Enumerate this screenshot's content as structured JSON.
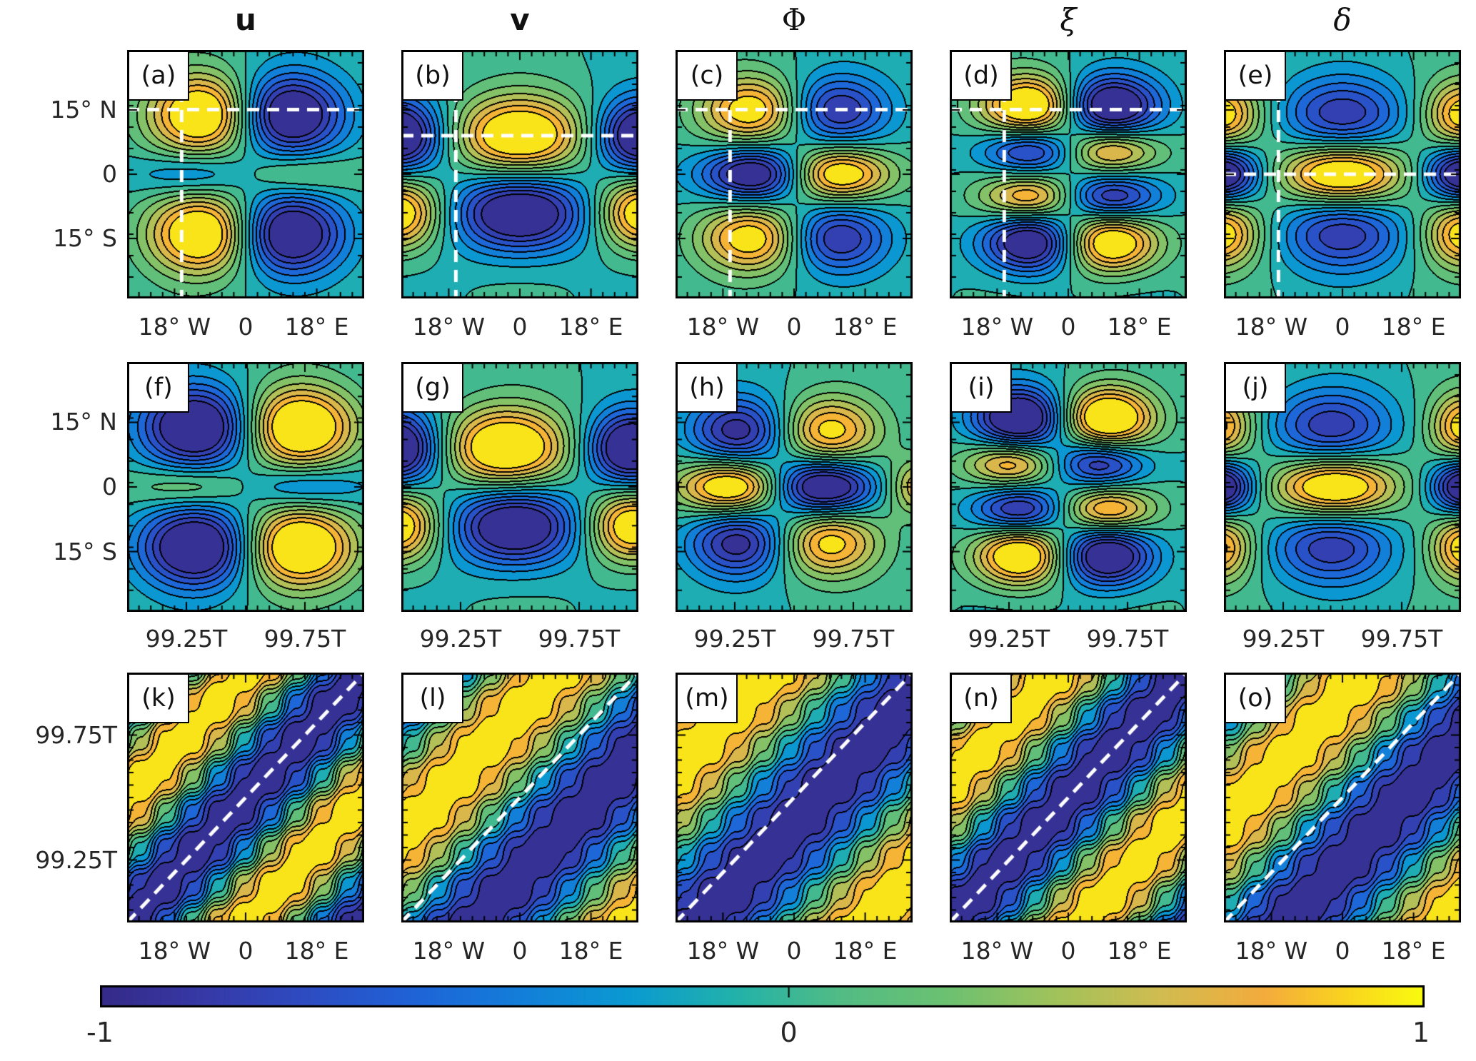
{
  "chart_data": {
    "type": "heatmap",
    "subtype": "filled-contour-panel-grid",
    "description": "3x5 grid of filled contour panels (a)-(o) of equatorial wave fields; columns are variables u, v, Phi, xi, delta; row 1 longitude-latitude maps, row 2 time-latitude sections, row 3 longitude-time Hovmoller diagrams; shared colorbar from -1 to 1",
    "value_range": [
      -1,
      1
    ],
    "contour_levels": 14,
    "colormap": {
      "name": "parula",
      "anchors": [
        [
          0.0,
          "#352a87"
        ],
        [
          0.08,
          "#3639a7"
        ],
        [
          0.16,
          "#2d4dc3"
        ],
        [
          0.24,
          "#1e64d8"
        ],
        [
          0.32,
          "#127fd9"
        ],
        [
          0.4,
          "#0a9ad1"
        ],
        [
          0.48,
          "#22b2aa"
        ],
        [
          0.56,
          "#52bc84"
        ],
        [
          0.64,
          "#6cc171"
        ],
        [
          0.72,
          "#a0c25b"
        ],
        [
          0.8,
          "#d0bc50"
        ],
        [
          0.88,
          "#f4ab3c"
        ],
        [
          0.94,
          "#f9d320"
        ],
        [
          1.0,
          "#f9fb0e"
        ]
      ]
    },
    "contour_line_color": "#000000",
    "dashed_line_color": "#ffffff",
    "column_titles": [
      {
        "text": "u",
        "style": "bold"
      },
      {
        "text": "v",
        "style": "bold"
      },
      {
        "text": "Φ",
        "style": "serif"
      },
      {
        "text": "ξ",
        "style": "serif-italic"
      },
      {
        "text": "δ",
        "style": "serif-italic"
      }
    ],
    "rows": [
      {
        "kind": "longitude-latitude",
        "x_axis": {
          "min": -30,
          "max": 30,
          "major_ticks": [
            -18,
            0,
            18
          ],
          "tick_labels": [
            "18° W",
            "0",
            "18° E"
          ],
          "minor_step": 3
        },
        "y_axis": {
          "min": -29,
          "max": 29,
          "major_ticks": [
            15,
            0,
            -15
          ],
          "tick_labels": [
            "15° N",
            "0",
            "15° S"
          ],
          "minor_step": 5
        }
      },
      {
        "kind": "time-latitude",
        "x_axis": {
          "min": 99,
          "max": 100,
          "major_ticks": [
            99.25,
            99.75
          ],
          "tick_labels": [
            "99.25T",
            "99.75T"
          ],
          "minor_step": 0.05
        },
        "y_axis": {
          "min": -29,
          "max": 29,
          "major_ticks": [
            15,
            0,
            -15
          ],
          "tick_labels": [
            "15° N",
            "0",
            "15° S"
          ],
          "minor_step": 5
        }
      },
      {
        "kind": "longitude-time",
        "x_axis": {
          "min": -30,
          "max": 30,
          "major_ticks": [
            -18,
            0,
            18
          ],
          "tick_labels": [
            "18° W",
            "0",
            "18° E"
          ],
          "minor_step": 3
        },
        "y_axis": {
          "min": 99,
          "max": 100,
          "major_ticks": [
            99.75,
            99.25
          ],
          "tick_labels": [
            "99.75T",
            "99.25T"
          ],
          "minor_step": 0.05
        }
      }
    ],
    "panels": [
      {
        "id": "a",
        "label": "(a)",
        "row": 0,
        "col": 0,
        "field": "u",
        "pattern": "blobs",
        "background": [
          "sin",
          -0.05
        ],
        "blobs": [
          [
            -10,
            14,
            10,
            6.5,
            1.3
          ],
          [
            10,
            14,
            10,
            6.5,
            -1.3
          ],
          [
            -10,
            -14,
            10,
            6.5,
            1.3
          ],
          [
            10,
            -14,
            10,
            6.5,
            -1.3
          ],
          [
            -10,
            0,
            12,
            3.5,
            -0.55
          ],
          [
            10,
            0,
            12,
            3.5,
            0.5
          ]
        ],
        "dashed": {
          "h_frac": 0.24,
          "v_frac": 0.23
        }
      },
      {
        "id": "b",
        "label": "(b)",
        "row": 0,
        "col": 1,
        "field": "v",
        "pattern": "blobs",
        "background": [
          "cos",
          0.05
        ],
        "blobs": [
          [
            -31,
            9,
            8,
            6,
            -1.3
          ],
          [
            0,
            9,
            12,
            6.5,
            1.2
          ],
          [
            31,
            9,
            8,
            6,
            -1.3
          ],
          [
            -31,
            -9,
            8,
            6,
            1.2
          ],
          [
            0,
            -9,
            12,
            6.5,
            -1.3
          ],
          [
            31,
            -9,
            8,
            6,
            1.2
          ]
        ],
        "dashed": {
          "h_frac": 0.345,
          "v_frac": 0.23
        }
      },
      {
        "id": "c",
        "label": "(c)",
        "row": 0,
        "col": 2,
        "field": "Φ",
        "pattern": "blobs",
        "background": [
          "sin",
          -0.05
        ],
        "blobs": [
          [
            -10,
            15,
            9.5,
            5.5,
            1.05
          ],
          [
            10,
            15,
            9.5,
            5.5,
            -0.9
          ],
          [
            -9,
            0,
            10,
            4.5,
            -1.35
          ],
          [
            10,
            0,
            10,
            4.5,
            1.3
          ],
          [
            -10,
            -15,
            9.5,
            5.5,
            1.05
          ],
          [
            10,
            -15,
            9.5,
            5.5,
            -0.9
          ]
        ],
        "dashed": {
          "h_frac": 0.24,
          "v_frac": 0.23
        }
      },
      {
        "id": "d",
        "label": "(d)",
        "row": 0,
        "col": 3,
        "field": "ξ",
        "pattern": "blobs",
        "background": [
          "sin",
          -0.05
        ],
        "blobs": [
          [
            -9,
            16,
            9,
            5,
            1.3
          ],
          [
            10,
            16,
            9,
            5,
            -1.3
          ],
          [
            -9,
            5.5,
            9,
            3.8,
            -0.95
          ],
          [
            10,
            5.5,
            9,
            3.8,
            0.95
          ],
          [
            -9,
            -5.5,
            9,
            3.8,
            0.95
          ],
          [
            10,
            -5.5,
            9,
            3.8,
            -0.95
          ],
          [
            -9,
            -16,
            9,
            5,
            -1.3
          ],
          [
            10,
            -16,
            9,
            5,
            1.3
          ]
        ],
        "dashed": {
          "h_frac": 0.24,
          "v_frac": 0.23
        }
      },
      {
        "id": "e",
        "label": "(e)",
        "row": 0,
        "col": 4,
        "field": "δ",
        "pattern": "blobs",
        "background": [
          "cos",
          -0.05
        ],
        "blobs": [
          [
            -31,
            14,
            7,
            5.5,
            1.0
          ],
          [
            0,
            14,
            11,
            6,
            -0.8
          ],
          [
            31,
            14,
            7,
            5.5,
            1.0
          ],
          [
            -31,
            0,
            7,
            4.5,
            -1.35
          ],
          [
            0,
            0,
            11,
            5,
            1.3
          ],
          [
            31,
            0,
            7,
            4.5,
            -1.35
          ],
          [
            -31,
            -14,
            7,
            5.5,
            1.0
          ],
          [
            0,
            -14,
            11,
            6,
            -0.8
          ],
          [
            31,
            -14,
            7,
            5.5,
            1.0
          ]
        ],
        "dashed": {
          "h_frac": 0.5,
          "v_frac": 0.23
        }
      },
      {
        "id": "f",
        "label": "(f)",
        "row": 1,
        "col": 0,
        "field": "u",
        "pattern": "blobs",
        "background": [
          "sin",
          0.05
        ],
        "blobs": [
          [
            99.3,
            14,
            0.17,
            6.5,
            -1.3
          ],
          [
            99.72,
            14,
            0.17,
            6.5,
            1.3
          ],
          [
            99.3,
            -14,
            0.17,
            6.5,
            -1.3
          ],
          [
            99.72,
            -14,
            0.17,
            6.5,
            1.3
          ],
          [
            99.3,
            0,
            0.2,
            3.5,
            0.5
          ],
          [
            99.72,
            0,
            0.2,
            3.5,
            -0.55
          ]
        ],
        "dashed": null
      },
      {
        "id": "g",
        "label": "(g)",
        "row": 1,
        "col": 1,
        "field": "v",
        "pattern": "blobs",
        "background": [
          "cos",
          0.05
        ],
        "blobs": [
          [
            98.98,
            9,
            0.13,
            6,
            -1.3
          ],
          [
            99.44,
            9,
            0.19,
            6.5,
            1.25
          ],
          [
            99.97,
            9,
            0.13,
            6,
            -1.3
          ],
          [
            98.98,
            -9,
            0.13,
            6,
            1.2
          ],
          [
            99.48,
            -9,
            0.19,
            6.5,
            -1.3
          ],
          [
            99.97,
            -9,
            0.13,
            6,
            1.2
          ]
        ],
        "dashed": null
      },
      {
        "id": "h",
        "label": "(h)",
        "row": 1,
        "col": 2,
        "field": "Φ",
        "pattern": "blobs",
        "background": [
          "sin",
          0.05
        ],
        "blobs": [
          [
            99.27,
            13,
            0.15,
            5.5,
            -0.95
          ],
          [
            99.64,
            13,
            0.15,
            5.5,
            0.95
          ],
          [
            99.24,
            0,
            0.16,
            4.5,
            1.3
          ],
          [
            99.62,
            0,
            0.16,
            4.5,
            -1.35
          ],
          [
            100.04,
            0,
            0.1,
            4.5,
            0.8
          ],
          [
            99.27,
            -13,
            0.15,
            5.5,
            -0.95
          ],
          [
            99.64,
            -13,
            0.15,
            5.5,
            0.95
          ]
        ],
        "dashed": null
      },
      {
        "id": "i",
        "label": "(i)",
        "row": 1,
        "col": 3,
        "field": "ξ",
        "pattern": "blobs",
        "background": [
          "sin",
          0.05
        ],
        "blobs": [
          [
            99.3,
            16,
            0.14,
            5,
            -1.3
          ],
          [
            99.66,
            16,
            0.14,
            5,
            1.3
          ],
          [
            99.26,
            5.5,
            0.14,
            3.8,
            0.95
          ],
          [
            99.63,
            5.5,
            0.14,
            3.8,
            -0.95
          ],
          [
            99.3,
            -5.5,
            0.14,
            3.8,
            -0.95
          ],
          [
            99.66,
            -5.5,
            0.14,
            3.8,
            0.95
          ],
          [
            99.3,
            -16,
            0.14,
            5,
            1.3
          ],
          [
            99.66,
            -16,
            0.14,
            5,
            -1.3
          ]
        ],
        "dashed": null
      },
      {
        "id": "j",
        "label": "(j)",
        "row": 1,
        "col": 4,
        "field": "δ",
        "pattern": "blobs",
        "background": [
          "cos",
          -0.05
        ],
        "blobs": [
          [
            98.98,
            14,
            0.1,
            5.5,
            0.9
          ],
          [
            99.45,
            14,
            0.18,
            6,
            -0.8
          ],
          [
            100.02,
            14,
            0.1,
            5.5,
            1.0
          ],
          [
            98.98,
            0,
            0.1,
            4.5,
            -1.35
          ],
          [
            99.47,
            0,
            0.18,
            5,
            1.3
          ],
          [
            100.02,
            0,
            0.1,
            4.5,
            -1.35
          ],
          [
            98.98,
            -14,
            0.1,
            5.5,
            0.9
          ],
          [
            99.45,
            -14,
            0.18,
            6,
            -0.8
          ],
          [
            100.02,
            -14,
            0.1,
            5.5,
            1.0
          ]
        ],
        "dashed": null
      },
      {
        "id": "k",
        "label": "(k)",
        "row": 2,
        "col": 0,
        "field": "u",
        "pattern": "stripes",
        "stripe": {
          "freq": 1.0,
          "phase": 0.5
        },
        "dashed": {
          "diagonal": true
        }
      },
      {
        "id": "l",
        "label": "(l)",
        "row": 2,
        "col": 1,
        "field": "v",
        "pattern": "stripes",
        "stripe": {
          "freq": 0.75,
          "phase": -0.35
        },
        "dashed": {
          "diagonal": true
        }
      },
      {
        "id": "m",
        "label": "(m)",
        "row": 2,
        "col": 2,
        "field": "Φ",
        "pattern": "stripes",
        "stripe": {
          "freq": 0.7,
          "phase": -0.614
        },
        "dashed": {
          "diagonal": true
        }
      },
      {
        "id": "n",
        "label": "(n)",
        "row": 2,
        "col": 3,
        "field": "ξ",
        "pattern": "stripes",
        "stripe": {
          "freq": 0.9,
          "phase": 0.555
        },
        "dashed": {
          "diagonal": true
        }
      },
      {
        "id": "o",
        "label": "(o)",
        "row": 2,
        "col": 4,
        "field": "δ",
        "pattern": "stripes",
        "stripe": {
          "freq": 0.75,
          "phase": -0.4
        },
        "dashed": {
          "diagonal": true
        }
      }
    ],
    "colorbar": {
      "tick_labels": [
        "-1",
        "0",
        "1"
      ],
      "mid_frac": 0.52,
      "orientation": "horizontal"
    }
  }
}
